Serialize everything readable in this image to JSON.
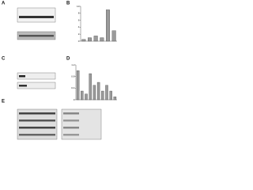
{
  "panels": [
    "A",
    "B",
    "C",
    "D",
    "E"
  ],
  "chart_data": [
    {
      "type": "bar",
      "values": [
        0.5,
        1,
        1.5,
        1,
        9,
        3
      ],
      "color": "#9a9a9a",
      "ylim": [
        0,
        10
      ],
      "yticks": [
        0,
        2,
        4,
        6,
        8,
        10
      ]
    },
    {
      "type": "bar",
      "values": [
        1,
        0.3,
        0.2,
        0.9,
        0.5,
        0.6,
        0.3,
        0.5,
        0.3,
        0.1
      ],
      "color": "#9a9a9a",
      "ylim": [
        0,
        1.2
      ],
      "yticks": [
        0,
        0.4,
        0.8,
        1.2
      ]
    }
  ]
}
